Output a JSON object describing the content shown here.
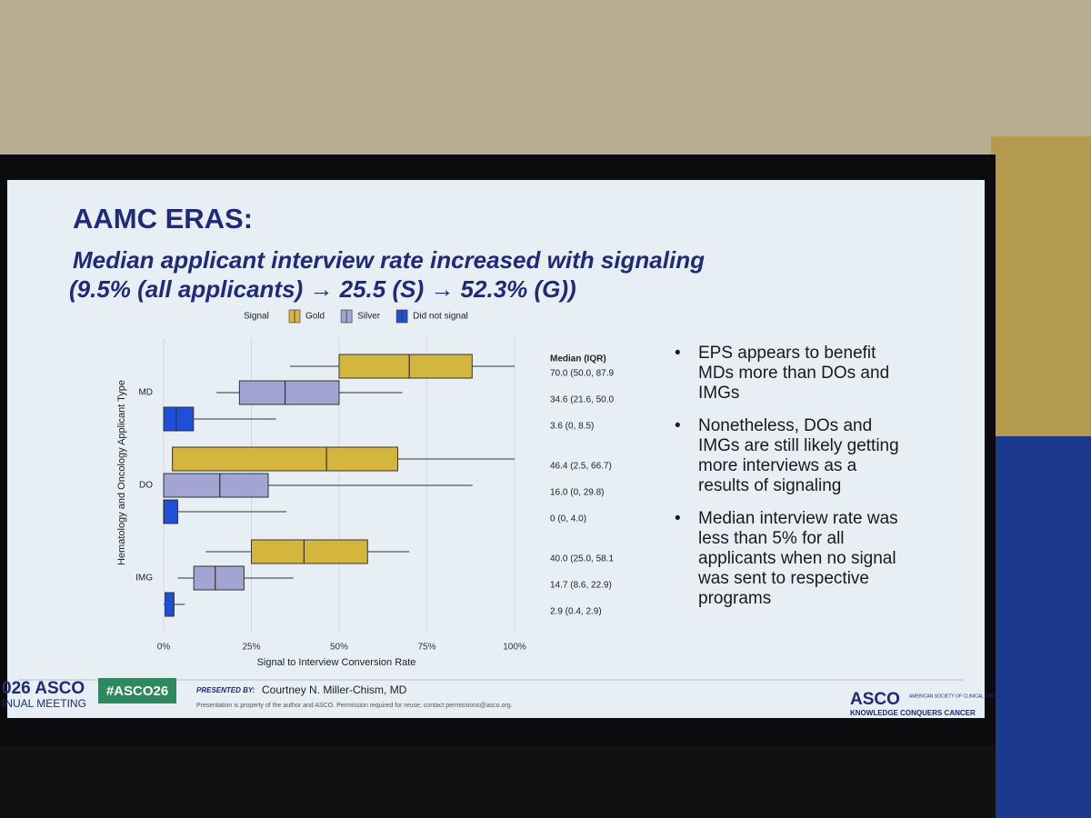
{
  "slide": {
    "title": "AAMC ERAS:",
    "subtitle_lines": [
      "Median applicant interview rate increased with signaling",
      "(9.5% (all applicants) → 25.5 (S) → 52.3% (G))"
    ],
    "bullets": [
      "EPS appears to benefit MDs more than DOs and IMGs",
      "Nonetheless, DOs and IMGs are still likely getting more interviews as a results of signaling",
      "Median interview rate was less than 5% for all applicants when no signal was sent to respective programs"
    ],
    "footer": {
      "meeting_brand": "026 ASCO",
      "meeting_sub": "INUAL MEETING",
      "hashtag": "#ASCO26",
      "presented_by_label": "PRESENTED BY:",
      "presenter": "Courtney N. Miller-Chism, MD",
      "disclaimer": "Presentation is property of the author and ASCO. Permission required for reuse; contact permissions@asco.org.",
      "logo": "ASCO",
      "logo_org": "AMERICAN SOCIETY OF CLINICAL ONCOLOGY",
      "logo_tagline": "KNOWLEDGE CONQUERS CANCER"
    }
  },
  "chart_data": {
    "type": "box",
    "legend_title": "Signal",
    "x_label": "Signal to Interview Conversion Rate",
    "y_label": "Hematology and Oncology Applicant Type",
    "stats_header": "Median (IQR)",
    "categories": [
      "MD",
      "DO",
      "IMG"
    ],
    "series": [
      {
        "name": "Gold",
        "color": "#d4b63f",
        "median": [
          70.0,
          46.4,
          40.0
        ],
        "q1": [
          50.0,
          2.5,
          25.0
        ],
        "q3": [
          87.9,
          66.7,
          58.1
        ],
        "whislo": [
          36,
          2.5,
          12
        ],
        "whishi": [
          100,
          100,
          70
        ],
        "value_labels": [
          "70.0 (50.0, 87.9",
          "46.4 (2.5, 66.7)",
          "40.0 (25.0, 58.1"
        ]
      },
      {
        "name": "Silver",
        "color": "#a3a4d2",
        "median": [
          34.6,
          16.0,
          14.7
        ],
        "q1": [
          21.6,
          0,
          8.6
        ],
        "q3": [
          50.0,
          29.8,
          22.9
        ],
        "whislo": [
          15,
          0,
          4
        ],
        "whishi": [
          68,
          88,
          37
        ],
        "value_labels": [
          "34.6 (21.6, 50.0",
          "16.0 (0, 29.8)",
          "14.7 (8.6, 22.9)"
        ]
      },
      {
        "name": "Did not signal",
        "color": "#1f4fd8",
        "median": [
          3.6,
          0,
          2.9
        ],
        "q1": [
          0,
          0,
          0.4
        ],
        "q3": [
          8.5,
          4.0,
          2.9
        ],
        "whislo": [
          3,
          0,
          0
        ],
        "whishi": [
          32,
          35,
          6
        ],
        "value_labels": [
          "3.6 (0, 8.5)",
          "0 (0, 4.0)",
          "2.9 (0.4, 2.9)"
        ]
      }
    ],
    "xlim": [
      0,
      100
    ],
    "xticks": [
      {
        "value": 0,
        "label": "0%"
      },
      {
        "value": 25,
        "label": "25%"
      },
      {
        "value": 50,
        "label": "50%"
      },
      {
        "value": 75,
        "label": "75%"
      },
      {
        "value": 100,
        "label": "100%"
      }
    ],
    "grid": true
  }
}
